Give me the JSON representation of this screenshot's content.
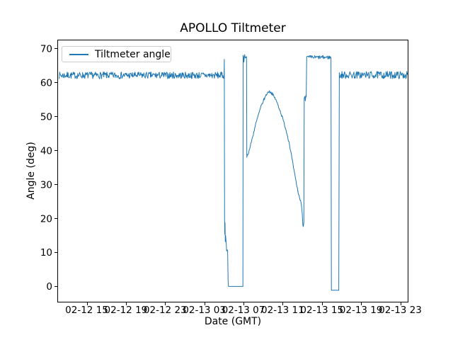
{
  "window": {
    "background": "#ffffff"
  },
  "chart": {
    "title": "APOLLO Tiltmeter",
    "xlabel": "Date (GMT)",
    "ylabel": "Angle (deg)",
    "legend": {
      "label": "Tiltmeter angle"
    },
    "line_color": "#1f77b4",
    "frame_color": "#000000",
    "text_color": "#000000"
  },
  "chart_data": {
    "type": "line",
    "title": "APOLLO Tiltmeter",
    "xlabel": "Date (GMT)",
    "ylabel": "Angle (deg)",
    "legend": [
      "Tiltmeter angle"
    ],
    "legend_position": "upper left",
    "grid": false,
    "x_unit": "hours since 02-12 00:00 GMT",
    "xlim": [
      12.0,
      47.83
    ],
    "ylim": [
      -4.7,
      72.6
    ],
    "x_ticks": [
      {
        "t": 15,
        "label": "02-12 15"
      },
      {
        "t": 19,
        "label": "02-12 19"
      },
      {
        "t": 23,
        "label": "02-12 23"
      },
      {
        "t": 27,
        "label": "02-13 03"
      },
      {
        "t": 31,
        "label": "02-13 07"
      },
      {
        "t": 35,
        "label": "02-13 11"
      },
      {
        "t": 39,
        "label": "02-13 15"
      },
      {
        "t": 43,
        "label": "02-13 19"
      },
      {
        "t": 47,
        "label": "02-13 23"
      }
    ],
    "y_ticks": [
      0,
      10,
      20,
      30,
      40,
      50,
      60,
      70
    ],
    "noise_seed": 7,
    "series_segments": [
      {
        "type": "noisy",
        "t0": 12.15,
        "t1": 29.0,
        "level": 62.1,
        "amp": 1.0
      },
      {
        "type": "points",
        "pts": [
          [
            29.02,
            62.4
          ],
          [
            29.04,
            66.8
          ],
          [
            29.07,
            19.5
          ],
          [
            29.09,
            15.3
          ],
          [
            29.11,
            18.8
          ],
          [
            29.14,
            13.2
          ],
          [
            29.17,
            15.0
          ],
          [
            29.2,
            14.0
          ],
          [
            29.24,
            12.4
          ],
          [
            29.28,
            10.4
          ],
          [
            29.33,
            10.8
          ],
          [
            29.38,
            10.5
          ],
          [
            29.43,
            1.4
          ],
          [
            29.46,
            0.2
          ]
        ]
      },
      {
        "type": "flat",
        "t0": 29.48,
        "t1": 30.94,
        "level": 0.0
      },
      {
        "type": "points",
        "pts": [
          [
            30.96,
            68.0
          ],
          [
            31.0,
            67.3
          ],
          [
            31.04,
            66.0
          ],
          [
            31.08,
            67.6
          ],
          [
            31.12,
            68.2
          ],
          [
            31.17,
            67.2
          ],
          [
            31.22,
            67.5
          ],
          [
            31.27,
            67.3
          ],
          [
            31.31,
            67.6
          ],
          [
            31.34,
            38.0
          ]
        ]
      },
      {
        "type": "smooth",
        "jitter": 0.4,
        "step": 0.05,
        "pts": [
          [
            31.36,
            38.2
          ],
          [
            31.6,
            40.2
          ],
          [
            31.9,
            43.7
          ],
          [
            32.2,
            47.2
          ],
          [
            32.5,
            50.3
          ],
          [
            32.8,
            53.0
          ],
          [
            33.1,
            55.1
          ],
          [
            33.35,
            56.5
          ],
          [
            33.55,
            57.3
          ],
          [
            33.75,
            57.2
          ],
          [
            33.95,
            56.6
          ],
          [
            34.25,
            55.2
          ],
          [
            34.55,
            53.2
          ],
          [
            34.9,
            50.3
          ],
          [
            35.3,
            46.5
          ],
          [
            35.65,
            42.5
          ],
          [
            35.95,
            37.5
          ],
          [
            36.25,
            32.5
          ],
          [
            36.55,
            28.0
          ],
          [
            36.8,
            25.3
          ],
          [
            36.92,
            24.0
          ],
          [
            37.0,
            21.0
          ],
          [
            37.06,
            18.3
          ],
          [
            37.1,
            17.7
          ],
          [
            37.16,
            19.3
          ]
        ]
      },
      {
        "type": "points",
        "pts": [
          [
            37.2,
            55.4
          ],
          [
            37.26,
            55.9
          ],
          [
            37.31,
            54.6
          ],
          [
            37.36,
            56.2
          ],
          [
            37.4,
            55.8
          ]
        ]
      },
      {
        "type": "noisy",
        "t0": 37.45,
        "t1": 39.95,
        "level": 67.4,
        "amp": 0.55
      },
      {
        "type": "flat",
        "t0": 39.97,
        "t1": 40.72,
        "level": -1.1
      },
      {
        "type": "noisy",
        "t0": 40.78,
        "t1": 47.78,
        "level": 62.2,
        "amp": 1.1
      }
    ]
  }
}
